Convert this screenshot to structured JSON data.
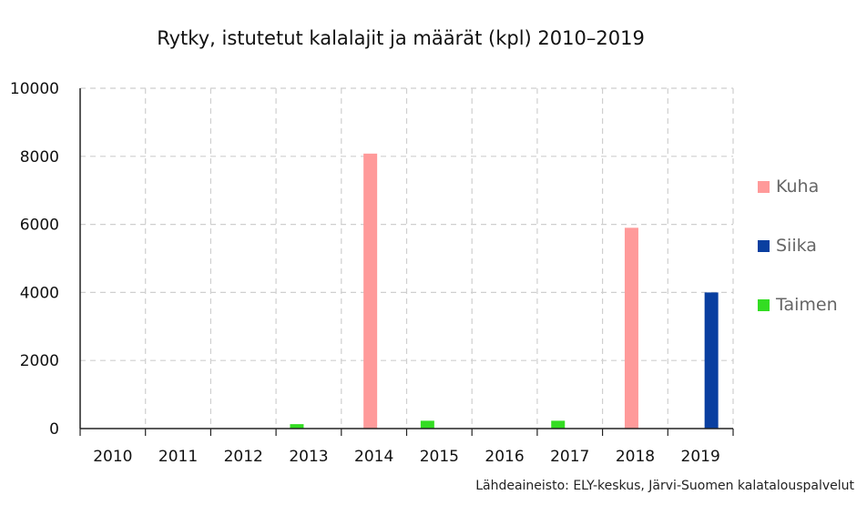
{
  "chart_data": {
    "type": "bar",
    "title": "Rytky, istutetut kalalajit ja määrät (kpl) 2010–2019",
    "categories": [
      "2010",
      "2011",
      "2012",
      "2013",
      "2014",
      "2015",
      "2016",
      "2017",
      "2018",
      "2019"
    ],
    "series": [
      {
        "name": "Kuha",
        "color": "#ff9a9a",
        "values": [
          0,
          0,
          0,
          0,
          8080,
          0,
          0,
          0,
          5900,
          0
        ]
      },
      {
        "name": "Siika",
        "color": "#0a3fa0",
        "values": [
          0,
          0,
          0,
          0,
          0,
          0,
          0,
          0,
          0,
          4000
        ]
      },
      {
        "name": "Taimen",
        "color": "#33dd22",
        "values": [
          0,
          0,
          0,
          130,
          0,
          230,
          0,
          230,
          0,
          0
        ]
      }
    ],
    "ylim": [
      0,
      10000
    ],
    "yticks": [
      0,
      2000,
      4000,
      6000,
      8000,
      10000
    ],
    "grid": true,
    "legend_position": "right",
    "xlabel": "",
    "ylabel": "",
    "source": "Lähdeaineisto: ELY-keskus, Järvi-Suomen kalatalouspalvelut"
  }
}
